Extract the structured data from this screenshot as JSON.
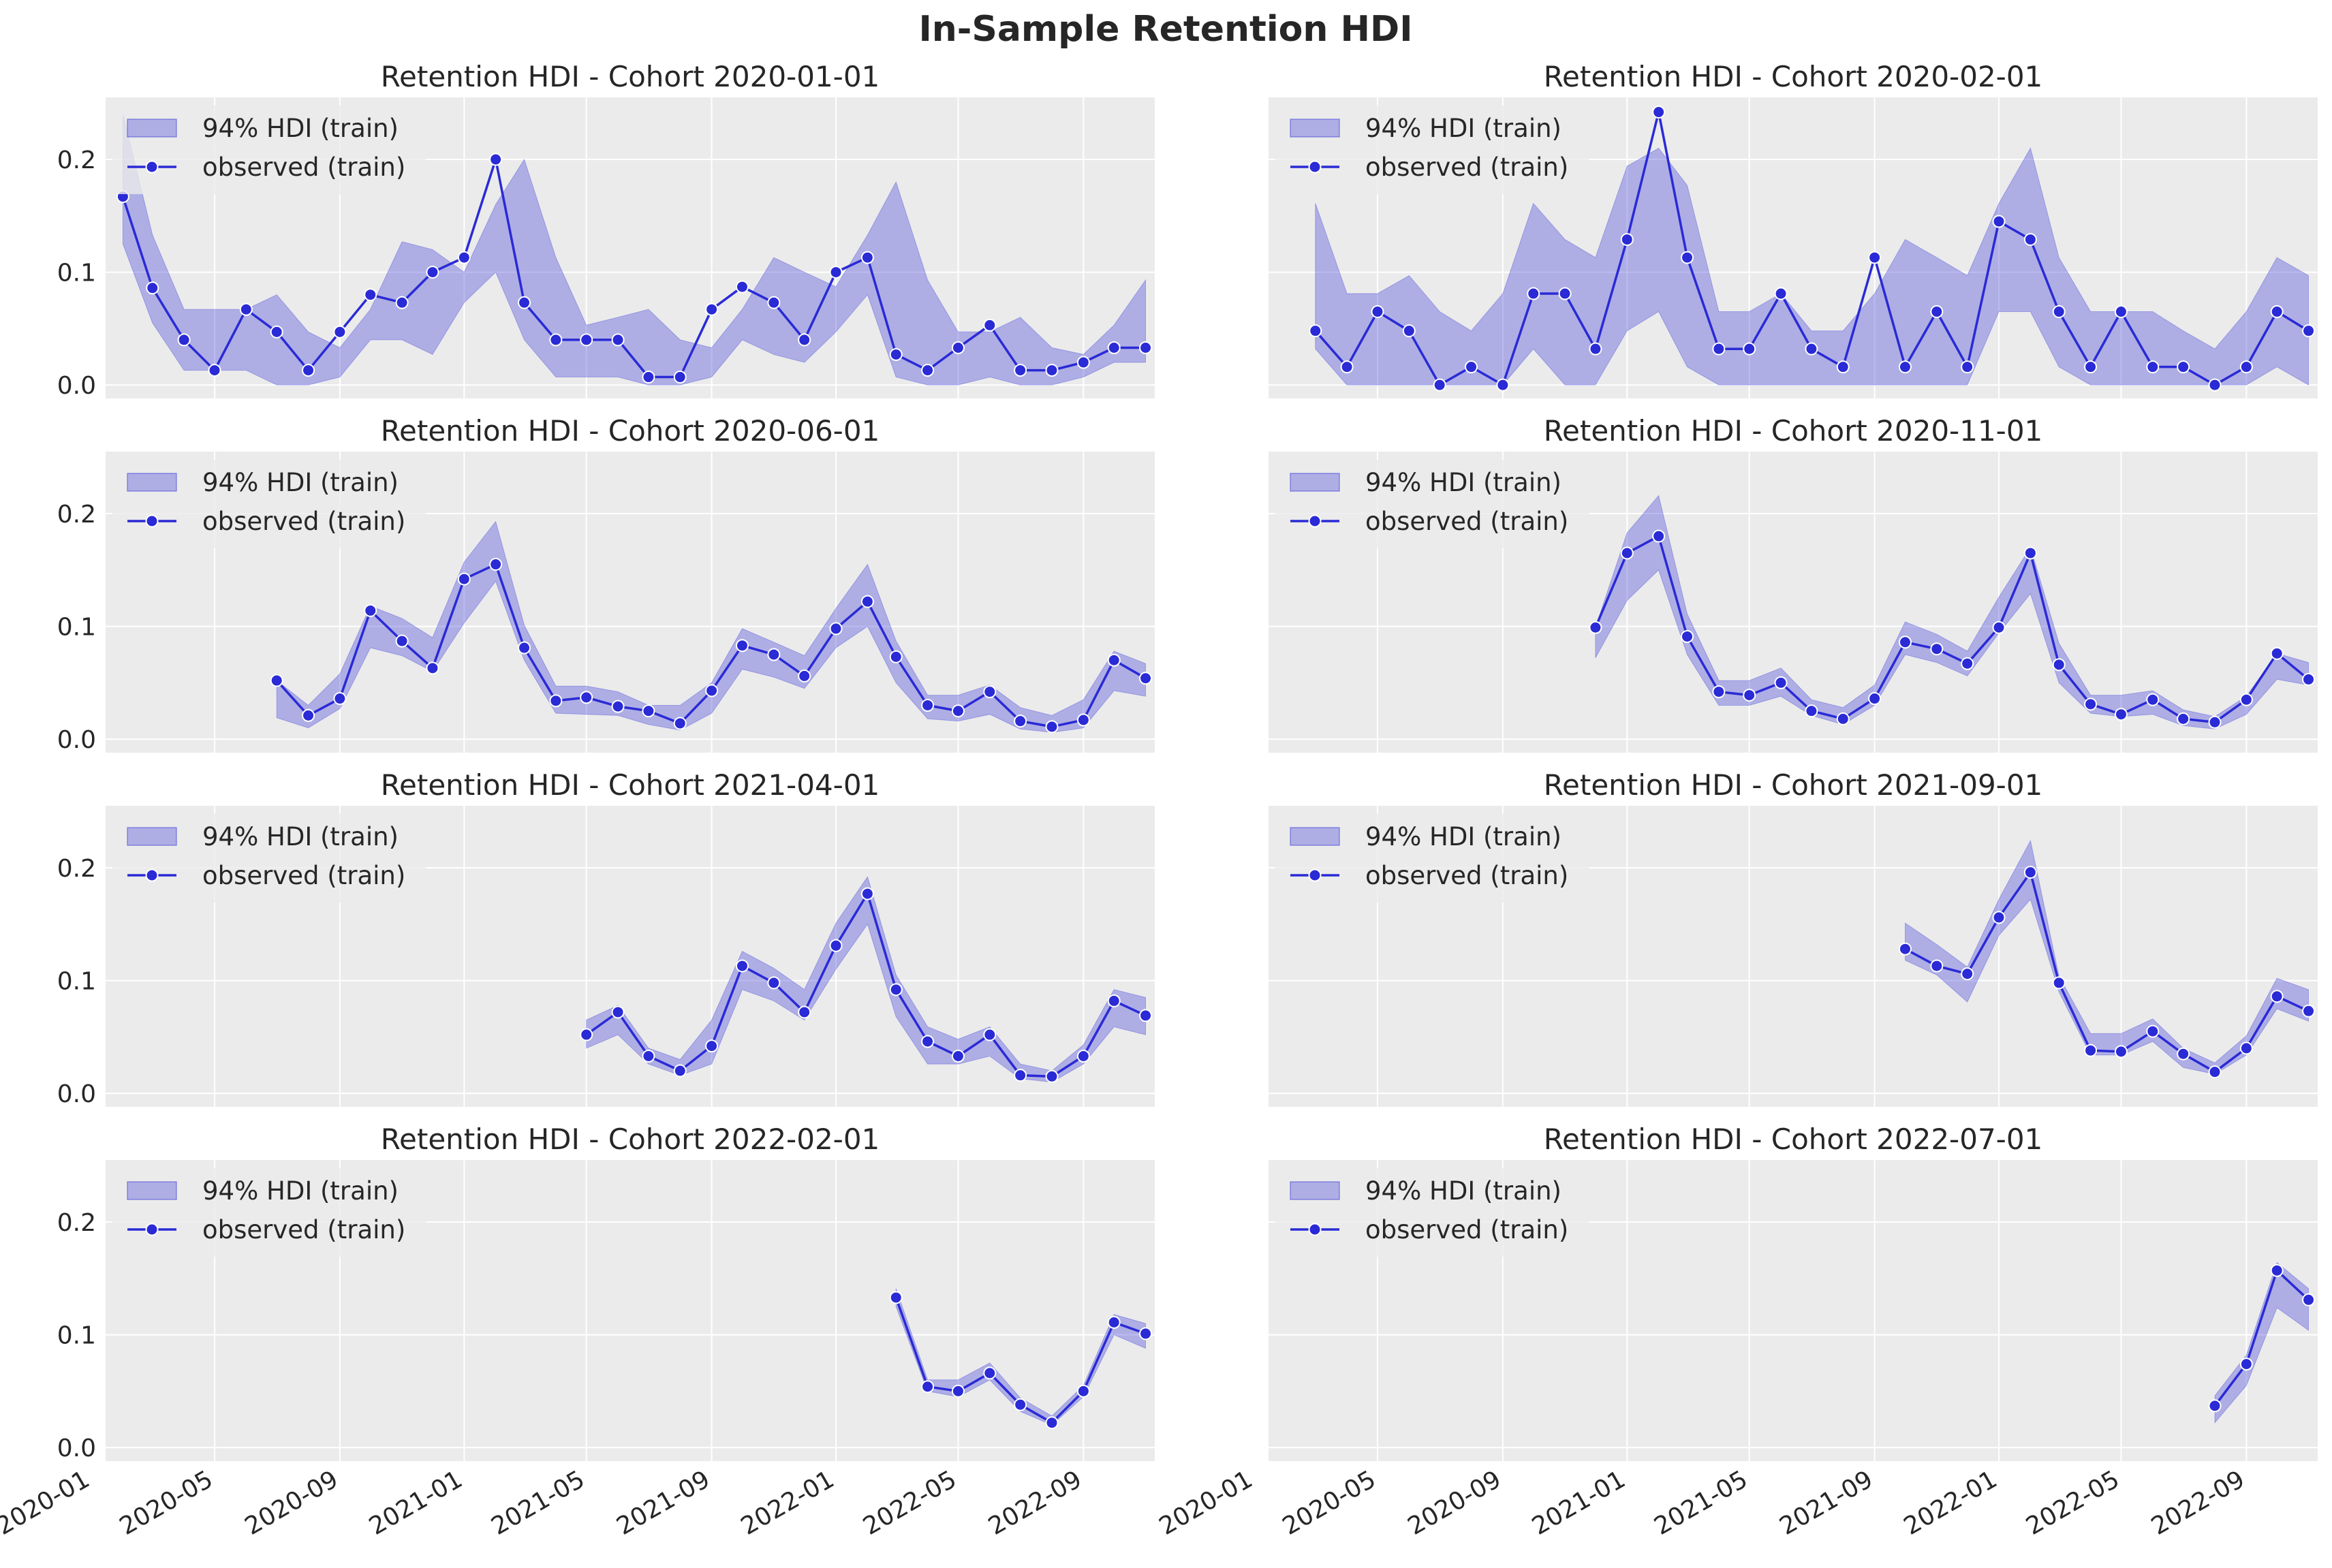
{
  "chart_data": {
    "type": "line",
    "title": "In-Sample Retention HDI",
    "colors": {
      "background": "#ebebeb",
      "grid": "#ffffff",
      "band": "#3b3bd9",
      "line": "#2a2ad6",
      "marker_edge": "#ffffff",
      "legend_bg": "#ebebeb"
    },
    "x_dates": [
      "2020-02",
      "2020-03",
      "2020-04",
      "2020-05",
      "2020-06",
      "2020-07",
      "2020-08",
      "2020-09",
      "2020-10",
      "2020-11",
      "2020-12",
      "2021-01",
      "2021-02",
      "2021-03",
      "2021-04",
      "2021-05",
      "2021-06",
      "2021-07",
      "2021-08",
      "2021-09",
      "2021-10",
      "2021-11",
      "2021-12",
      "2022-01",
      "2022-02",
      "2022-03",
      "2022-04",
      "2022-05",
      "2022-06",
      "2022-07",
      "2022-08",
      "2022-09",
      "2022-10",
      "2022-11"
    ],
    "x_ticks": [
      "2020-01",
      "2020-05",
      "2020-09",
      "2021-01",
      "2021-05",
      "2021-09",
      "2022-01",
      "2022-05",
      "2022-09"
    ],
    "y_ticks": [
      "0.0",
      "0.1",
      "0.2"
    ],
    "ylim": [
      -0.012,
      0.255
    ],
    "legend": {
      "band": "94% HDI (train)",
      "line": "observed (train)"
    },
    "panels": [
      {
        "title": "Retention HDI - Cohort 2020-01-01",
        "start": "2020-02",
        "observed": [
          0.167,
          0.086,
          0.04,
          0.013,
          0.067,
          0.047,
          0.013,
          0.047,
          0.08,
          0.073,
          0.1,
          0.113,
          0.2,
          0.073,
          0.04,
          0.04,
          0.04,
          0.007,
          0.007,
          0.067,
          0.087,
          0.073,
          0.04,
          0.1,
          0.113,
          0.027,
          0.013,
          0.033,
          0.053,
          0.013,
          0.013,
          0.02,
          0.033,
          0.033
        ],
        "hdi_low": [
          0.125,
          0.055,
          0.013,
          0.013,
          0.013,
          0.0,
          0.0,
          0.007,
          0.04,
          0.04,
          0.027,
          0.073,
          0.1,
          0.04,
          0.007,
          0.007,
          0.007,
          0.0,
          0.0,
          0.007,
          0.04,
          0.027,
          0.02,
          0.047,
          0.08,
          0.007,
          0.0,
          0.0,
          0.007,
          0.0,
          0.0,
          0.007,
          0.02,
          0.02
        ],
        "hdi_high": [
          0.24,
          0.133,
          0.067,
          0.067,
          0.067,
          0.08,
          0.047,
          0.033,
          0.067,
          0.127,
          0.12,
          0.1,
          0.16,
          0.2,
          0.113,
          0.053,
          0.06,
          0.067,
          0.04,
          0.033,
          0.067,
          0.113,
          0.1,
          0.087,
          0.133,
          0.18,
          0.093,
          0.047,
          0.047,
          0.06,
          0.033,
          0.027,
          0.053,
          0.093
        ]
      },
      {
        "title": "Retention HDI - Cohort 2020-02-01",
        "start": "2020-03",
        "observed": [
          0.048,
          0.016,
          0.065,
          0.048,
          0.0,
          0.016,
          0.0,
          0.081,
          0.081,
          0.032,
          0.129,
          0.242,
          0.113,
          0.032,
          0.032,
          0.081,
          0.032,
          0.016,
          0.113,
          0.016,
          0.065,
          0.016,
          0.145,
          0.129,
          0.065,
          0.016,
          0.065,
          0.016,
          0.016,
          0.0,
          0.016,
          0.065,
          0.048
        ],
        "hdi_low": [
          0.032,
          0.0,
          0.0,
          0.0,
          0.0,
          0.0,
          0.0,
          0.032,
          0.0,
          0.0,
          0.048,
          0.065,
          0.016,
          0.0,
          0.0,
          0.0,
          0.0,
          0.0,
          0.0,
          0.0,
          0.0,
          0.0,
          0.065,
          0.065,
          0.016,
          0.0,
          0.0,
          0.0,
          0.0,
          0.0,
          0.0,
          0.016,
          0.0
        ],
        "hdi_high": [
          0.161,
          0.081,
          0.081,
          0.097,
          0.065,
          0.048,
          0.081,
          0.161,
          0.129,
          0.113,
          0.194,
          0.21,
          0.177,
          0.065,
          0.065,
          0.081,
          0.048,
          0.048,
          0.081,
          0.129,
          0.113,
          0.097,
          0.161,
          0.21,
          0.113,
          0.065,
          0.065,
          0.065,
          0.048,
          0.032,
          0.065,
          0.113,
          0.097
        ]
      },
      {
        "title": "Retention HDI - Cohort 2020-06-01",
        "start": "2020-07",
        "observed": [
          0.052,
          0.021,
          0.036,
          0.114,
          0.087,
          0.063,
          0.142,
          0.155,
          0.081,
          0.034,
          0.037,
          0.029,
          0.025,
          0.014,
          0.043,
          0.083,
          0.075,
          0.056,
          0.098,
          0.122,
          0.073,
          0.03,
          0.025,
          0.042,
          0.016,
          0.011,
          0.017,
          0.07,
          0.054
        ],
        "hdi_low": [
          0.019,
          0.01,
          0.027,
          0.081,
          0.074,
          0.06,
          0.103,
          0.14,
          0.07,
          0.023,
          0.022,
          0.021,
          0.013,
          0.008,
          0.023,
          0.062,
          0.055,
          0.045,
          0.081,
          0.1,
          0.05,
          0.018,
          0.016,
          0.022,
          0.009,
          0.006,
          0.01,
          0.043,
          0.038
        ],
        "hdi_high": [
          0.052,
          0.03,
          0.058,
          0.118,
          0.107,
          0.09,
          0.157,
          0.193,
          0.101,
          0.047,
          0.047,
          0.042,
          0.03,
          0.03,
          0.05,
          0.098,
          0.086,
          0.074,
          0.116,
          0.155,
          0.087,
          0.039,
          0.039,
          0.048,
          0.028,
          0.021,
          0.035,
          0.078,
          0.067
        ]
      },
      {
        "title": "Retention HDI - Cohort 2020-11-01",
        "start": "2020-12",
        "observed": [
          0.099,
          0.165,
          0.18,
          0.091,
          0.042,
          0.039,
          0.05,
          0.025,
          0.018,
          0.036,
          0.086,
          0.08,
          0.067,
          0.099,
          0.165,
          0.066,
          0.031,
          0.022,
          0.035,
          0.018,
          0.015,
          0.035,
          0.076,
          0.053
        ],
        "hdi_low": [
          0.072,
          0.123,
          0.15,
          0.075,
          0.03,
          0.03,
          0.038,
          0.021,
          0.013,
          0.03,
          0.075,
          0.068,
          0.056,
          0.094,
          0.129,
          0.05,
          0.023,
          0.02,
          0.022,
          0.012,
          0.009,
          0.022,
          0.053,
          0.048
        ],
        "hdi_high": [
          0.099,
          0.183,
          0.216,
          0.111,
          0.052,
          0.052,
          0.063,
          0.035,
          0.028,
          0.048,
          0.104,
          0.093,
          0.078,
          0.126,
          0.17,
          0.085,
          0.039,
          0.039,
          0.043,
          0.026,
          0.02,
          0.038,
          0.076,
          0.068
        ]
      },
      {
        "title": "Retention HDI - Cohort 2021-04-01",
        "start": "2021-05",
        "observed": [
          0.052,
          0.072,
          0.033,
          0.02,
          0.042,
          0.113,
          0.098,
          0.072,
          0.131,
          0.177,
          0.092,
          0.046,
          0.033,
          0.052,
          0.016,
          0.015,
          0.033,
          0.082,
          0.069
        ],
        "hdi_low": [
          0.04,
          0.052,
          0.026,
          0.016,
          0.026,
          0.092,
          0.082,
          0.065,
          0.11,
          0.15,
          0.068,
          0.026,
          0.026,
          0.033,
          0.013,
          0.01,
          0.026,
          0.059,
          0.052
        ],
        "hdi_high": [
          0.065,
          0.078,
          0.04,
          0.03,
          0.065,
          0.126,
          0.111,
          0.092,
          0.151,
          0.192,
          0.105,
          0.059,
          0.048,
          0.059,
          0.026,
          0.02,
          0.043,
          0.092,
          0.085
        ]
      },
      {
        "title": "Retention HDI - Cohort 2021-09-01",
        "start": "2021-10",
        "observed": [
          0.128,
          0.113,
          0.106,
          0.156,
          0.196,
          0.098,
          0.038,
          0.037,
          0.055,
          0.035,
          0.019,
          0.04,
          0.086,
          0.073
        ],
        "hdi_low": [
          0.118,
          0.105,
          0.081,
          0.14,
          0.172,
          0.09,
          0.034,
          0.034,
          0.046,
          0.023,
          0.017,
          0.034,
          0.075,
          0.064
        ],
        "hdi_high": [
          0.151,
          0.132,
          0.112,
          0.172,
          0.224,
          0.104,
          0.053,
          0.053,
          0.066,
          0.04,
          0.027,
          0.051,
          0.102,
          0.092
        ]
      },
      {
        "title": "Retention HDI - Cohort 2022-02-01",
        "start": "2022-03",
        "observed": [
          0.133,
          0.054,
          0.05,
          0.066,
          0.038,
          0.022,
          0.05,
          0.111,
          0.101
        ],
        "hdi_low": [
          0.125,
          0.05,
          0.045,
          0.06,
          0.032,
          0.02,
          0.045,
          0.1,
          0.088
        ],
        "hdi_high": [
          0.141,
          0.06,
          0.06,
          0.075,
          0.044,
          0.028,
          0.055,
          0.118,
          0.11
        ]
      },
      {
        "title": "Retention HDI - Cohort 2022-07-01",
        "start": "2022-08",
        "observed": [
          0.037,
          0.074,
          0.157,
          0.131
        ],
        "hdi_low": [
          0.022,
          0.055,
          0.124,
          0.104
        ],
        "hdi_high": [
          0.046,
          0.082,
          0.164,
          0.141
        ]
      }
    ]
  }
}
